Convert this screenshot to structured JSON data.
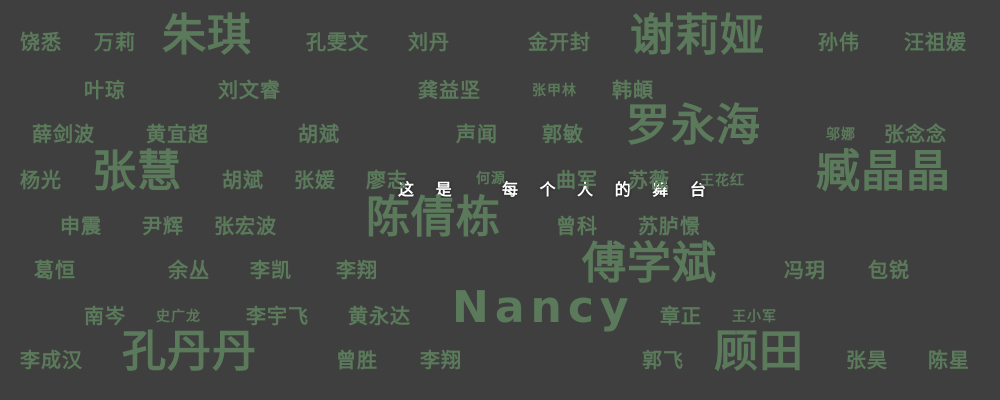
{
  "colors": {
    "background": "#3f3f3f",
    "name_text": "#5b7a5b",
    "headline_text": "#ffffff"
  },
  "headline": {
    "part1": "这 是",
    "part2": "每 个 人 的 舞 台"
  },
  "names": [
    {
      "text": "饶悉",
      "size": 20
    },
    {
      "text": "万莉",
      "size": 20
    },
    {
      "text": "朱琪",
      "size": 44
    },
    {
      "text": "孔雯文",
      "size": 20
    },
    {
      "text": "刘丹",
      "size": 20
    },
    {
      "text": "金开封",
      "size": 20
    },
    {
      "text": "谢莉娅",
      "size": 44
    },
    {
      "text": "孙伟",
      "size": 20
    },
    {
      "text": "汪祖媛",
      "size": 20
    },
    {
      "text": "叶琼",
      "size": 20
    },
    {
      "text": "刘文睿",
      "size": 20
    },
    {
      "text": "龚益坚",
      "size": 20
    },
    {
      "text": "张甲林",
      "size": 14
    },
    {
      "text": "韩頔",
      "size": 20
    },
    {
      "text": "薛剑波",
      "size": 20
    },
    {
      "text": "黄宜超",
      "size": 20
    },
    {
      "text": "胡斌",
      "size": 20
    },
    {
      "text": "声闻",
      "size": 20
    },
    {
      "text": "郭敏",
      "size": 20
    },
    {
      "text": "罗永海",
      "size": 44
    },
    {
      "text": "邬娜",
      "size": 14
    },
    {
      "text": "张念念",
      "size": 20
    },
    {
      "text": "杨光",
      "size": 20
    },
    {
      "text": "张慧",
      "size": 44
    },
    {
      "text": "胡斌",
      "size": 20
    },
    {
      "text": "张媛",
      "size": 20
    },
    {
      "text": "廖志",
      "size": 20
    },
    {
      "text": "何源",
      "size": 14
    },
    {
      "text": "曲军",
      "size": 20
    },
    {
      "text": "苏薇",
      "size": 20
    },
    {
      "text": "王花红",
      "size": 14
    },
    {
      "text": "臧晶晶",
      "size": 44
    },
    {
      "text": "申震",
      "size": 20
    },
    {
      "text": "尹辉",
      "size": 20
    },
    {
      "text": "张宏波",
      "size": 20
    },
    {
      "text": "陈倩栋",
      "size": 44
    },
    {
      "text": "曾科",
      "size": 20
    },
    {
      "text": "苏胪憬",
      "size": 20
    },
    {
      "text": "傅学斌",
      "size": 44
    },
    {
      "text": "葛恒",
      "size": 20
    },
    {
      "text": "余丛",
      "size": 20
    },
    {
      "text": "李凯",
      "size": 20
    },
    {
      "text": "李翔",
      "size": 20
    },
    {
      "text": "冯玥",
      "size": 20
    },
    {
      "text": "包锐",
      "size": 20
    },
    {
      "text": "Nancy",
      "size": 44
    },
    {
      "text": "南岑",
      "size": 20
    },
    {
      "text": "史广龙",
      "size": 14
    },
    {
      "text": "李宇飞",
      "size": 20
    },
    {
      "text": "黄永达",
      "size": 20
    },
    {
      "text": "章正",
      "size": 20
    },
    {
      "text": "王小军",
      "size": 14
    },
    {
      "text": "李成汉",
      "size": 20
    },
    {
      "text": "孔丹丹",
      "size": 44
    },
    {
      "text": "曾胜",
      "size": 20
    },
    {
      "text": "李翔",
      "size": 20
    },
    {
      "text": "郭飞",
      "size": 20
    },
    {
      "text": "顾田",
      "size": 44
    },
    {
      "text": "张昊",
      "size": 20
    },
    {
      "text": "陈星",
      "size": 20
    }
  ]
}
